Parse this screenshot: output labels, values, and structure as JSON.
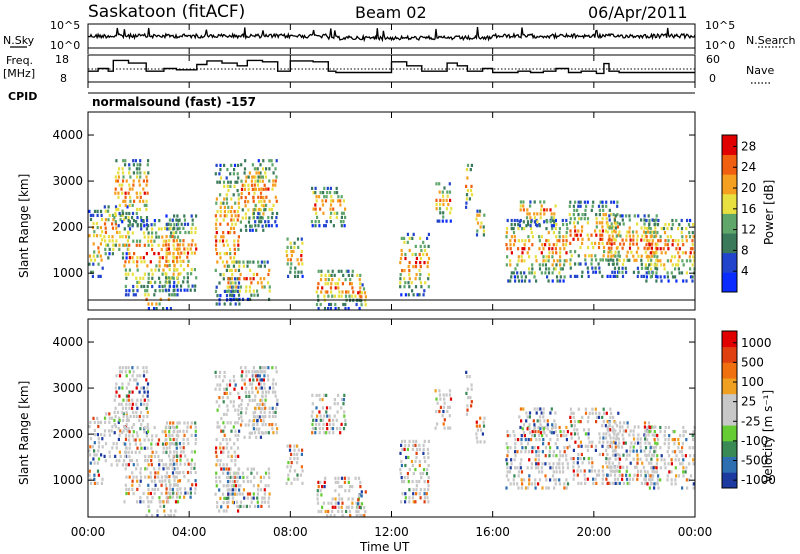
{
  "header": {
    "station": "Saskatoon (fitACF)",
    "beam": "Beam 02",
    "date": "06/Apr/2011"
  },
  "panel_labels": {
    "nsky": "N.Sky",
    "nsearch": "N.Search",
    "freq_line1": "Freq.",
    "freq_line2": "[MHz]",
    "nave": "Nave",
    "cpid": "CPID",
    "cpid_value": "normalsound (fast) -157"
  },
  "colors": {
    "power_scale": [
      "#0a2cff",
      "#2244cc",
      "#3a7a5a",
      "#5fa66a",
      "#e8e040",
      "#f5a020",
      "#f06010",
      "#e00000"
    ],
    "velocity_scale": [
      "#1c3aa0",
      "#2d6fb0",
      "#3a8a55",
      "#66cc33",
      "#c8c8c8",
      "#c8c8c8",
      "#f0a020",
      "#f07010",
      "#e04010",
      "#e00000"
    ]
  },
  "chart_data": [
    {
      "type": "line",
      "name": "nsky-nsearch",
      "ylabel": "N.Sky",
      "y2label": "N.Search",
      "yticks": [
        "10^5",
        "10^0"
      ],
      "y2ticks": [
        "10^5",
        "10^0"
      ],
      "xlim": [
        0,
        24
      ]
    },
    {
      "type": "line",
      "name": "freq-nave",
      "ylabel": "Freq. [MHz]",
      "y2label": "Nave",
      "yticks": [
        "18",
        "8"
      ],
      "y2ticks": [
        "60",
        "0"
      ],
      "ylim": [
        8,
        18
      ],
      "y2lim": [
        0,
        60
      ],
      "xlim": [
        0,
        24
      ],
      "freq_steps": [
        [
          0.0,
          12.0
        ],
        [
          0.4,
          13.0
        ],
        [
          0.8,
          12.0
        ],
        [
          1.0,
          16.0
        ],
        [
          1.6,
          15.0
        ],
        [
          2.3,
          12.0
        ],
        [
          3.0,
          13.0
        ],
        [
          3.5,
          12.5
        ],
        [
          4.3,
          14.5
        ],
        [
          4.7,
          15.8
        ],
        [
          5.3,
          15.0
        ],
        [
          5.9,
          14.0
        ],
        [
          6.3,
          16.0
        ],
        [
          6.9,
          15.5
        ],
        [
          7.5,
          12.0
        ],
        [
          8.0,
          15.8
        ],
        [
          8.9,
          15.5
        ],
        [
          9.5,
          12.0
        ],
        [
          9.8,
          11.5
        ],
        [
          10.5,
          11.5
        ],
        [
          11.1,
          11.5
        ],
        [
          12.0,
          15.5
        ],
        [
          12.6,
          14.0
        ],
        [
          13.2,
          12.0
        ],
        [
          14.2,
          15.0
        ],
        [
          14.6,
          14.0
        ],
        [
          15.0,
          12.0
        ],
        [
          15.6,
          13.0
        ],
        [
          16.0,
          11.5
        ],
        [
          17.0,
          12.0
        ],
        [
          17.5,
          11.5
        ],
        [
          18.0,
          12.0
        ],
        [
          18.5,
          13.0
        ],
        [
          19.0,
          11.5
        ],
        [
          19.5,
          12.0
        ],
        [
          20.1,
          11.2
        ],
        [
          20.4,
          14.8
        ],
        [
          20.6,
          12.0
        ],
        [
          21.0,
          11.5
        ],
        [
          22.0,
          11.5
        ],
        [
          23.0,
          11.5
        ],
        [
          24.0,
          11.5
        ]
      ]
    },
    {
      "type": "heatmap",
      "name": "power",
      "ylabel": "Slant Range [km]",
      "yticks": [
        1000,
        2000,
        3000,
        4000
      ],
      "ylim": [
        200,
        4500
      ],
      "xlim": [
        0,
        24
      ],
      "colorbar_label": "Power [dB]",
      "colorbar_ticks": [
        4,
        8,
        12,
        16,
        20,
        24,
        28
      ],
      "colorbar_range": [
        0,
        30
      ]
    },
    {
      "type": "heatmap",
      "name": "velocity",
      "ylabel": "Slant Range [km]",
      "yticks": [
        1000,
        2000,
        3000,
        4000
      ],
      "ylim": [
        200,
        4500
      ],
      "xlim": [
        0,
        24
      ],
      "xticks": [
        "00:00",
        "04:00",
        "08:00",
        "12:00",
        "16:00",
        "20:00",
        "00:00"
      ],
      "xlabel": "Time UT",
      "colorbar_label": "Velocity [m s⁻¹]",
      "colorbar_ticks": [
        "1000",
        "500",
        "100",
        "25",
        "-25",
        "-100",
        "-500",
        "-1000"
      ]
    }
  ]
}
